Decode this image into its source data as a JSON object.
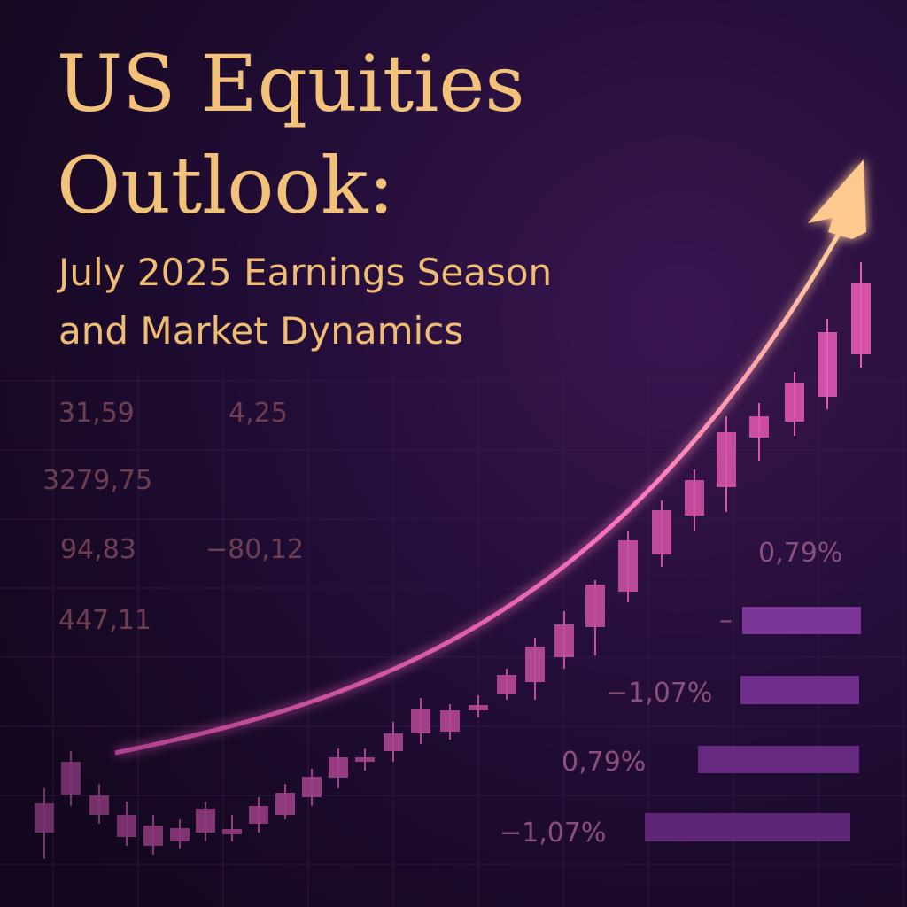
{
  "title": {
    "lines": [
      "US Equities",
      "Outlook:"
    ]
  },
  "subtitle": {
    "lines": [
      "July 2025 Earnings Season",
      "and Market Dynamics"
    ]
  },
  "figures": [
    "31,59",
    "4,25",
    "3279,75",
    "94,83",
    "−80,12",
    "447,11"
  ],
  "percent_labels": [
    "0,79%",
    "–",
    "−1,07%",
    "0,79%",
    "−1,07%"
  ]
}
